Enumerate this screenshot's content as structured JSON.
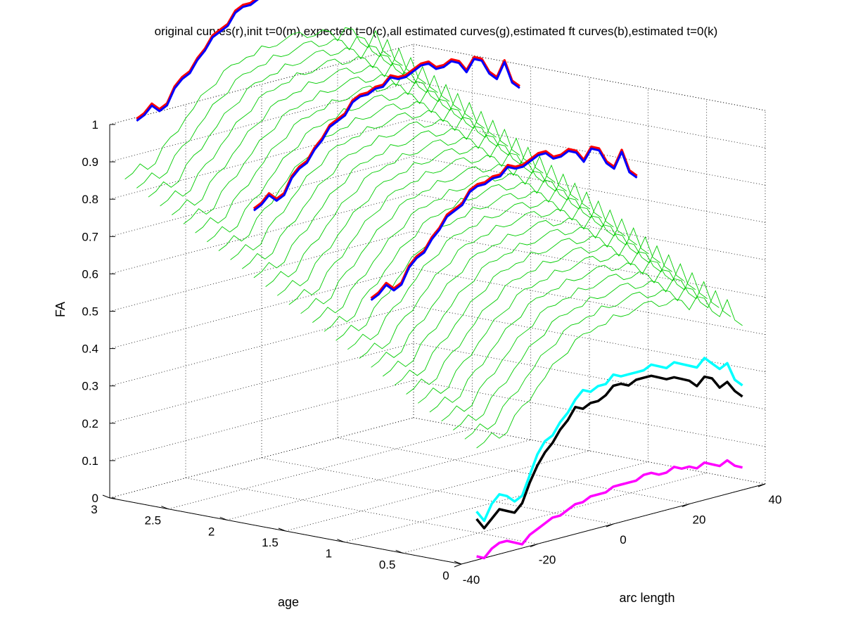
{
  "chart_data": {
    "type": "line",
    "projection": "3d",
    "title": "original curves(r),init t=0(m),expected t=0(c),all estimated curves(g),estimated ft curves(b),estimated t=0(k)",
    "xlabel": "arc length",
    "ylabel": "age",
    "zlabel": "FA",
    "xlim": [
      -40,
      40
    ],
    "ylim": [
      0,
      3
    ],
    "zlim": [
      0,
      1
    ],
    "x_ticks": [
      -40,
      -20,
      0,
      20,
      40
    ],
    "y_ticks": [
      0,
      0.5,
      1,
      1.5,
      2,
      2.5,
      3
    ],
    "z_ticks": [
      0,
      0.1,
      0.2,
      0.3,
      0.4,
      0.5,
      0.6,
      0.7,
      0.8,
      0.9,
      1
    ],
    "x_tick_labels": [
      "-40",
      "-20",
      "0",
      "20",
      "40"
    ],
    "y_tick_labels": [
      "0",
      "0.5",
      "1",
      "1.5",
      "2",
      "2.5",
      "3"
    ],
    "z_tick_labels": [
      "0",
      "0.1",
      "0.2",
      "0.3",
      "0.4",
      "0.5",
      "0.6",
      "0.7",
      "0.8",
      "0.9",
      "1"
    ],
    "grid": true,
    "box": true,
    "arc_length": [
      -36,
      -34,
      -32,
      -30,
      -28,
      -26,
      -24,
      -22,
      -20,
      -18,
      -16,
      -14,
      -12,
      -10,
      -8,
      -6,
      -4,
      -2,
      0,
      2,
      4,
      6,
      8,
      10,
      12,
      14,
      16,
      18,
      20,
      22,
      24,
      26,
      28,
      30,
      32,
      34
    ],
    "estimated_family": {
      "color": "#00cc00",
      "ages": [
        0.0,
        0.1,
        0.2,
        0.3,
        0.4,
        0.5,
        0.6,
        0.7,
        0.8,
        0.9,
        1.0,
        1.1,
        1.2,
        1.3,
        1.4,
        1.5,
        1.6,
        1.7,
        1.8,
        1.9,
        2.0,
        2.1,
        2.2,
        2.3,
        2.4,
        2.5,
        2.6,
        2.7,
        2.8,
        2.9,
        3.0
      ],
      "base": [
        0.3,
        0.31,
        0.33,
        0.31,
        0.32,
        0.36,
        0.38,
        0.39,
        0.42,
        0.44,
        0.47,
        0.48,
        0.49,
        0.52,
        0.53,
        0.53,
        0.54,
        0.54,
        0.56,
        0.55,
        0.55,
        0.56,
        0.57,
        0.57,
        0.55,
        0.55,
        0.56,
        0.55,
        0.52,
        0.55,
        0.54,
        0.5,
        0.48,
        0.52,
        0.46,
        0.44
      ],
      "age_slope": 0.181
    },
    "series": [
      {
        "name": "original curves",
        "color": "#ff0000",
        "kind": "age_curves",
        "ages": [
          0.9,
          1.9,
          2.9
        ],
        "age_shift": 0.185
      },
      {
        "name": "estimated ft curves",
        "color": "#0000ff",
        "kind": "age_curves",
        "ages": [
          0.9,
          1.9,
          2.9
        ],
        "age_shift": 0.18
      },
      {
        "name": "init t=0",
        "color": "#ff00ff",
        "age": 0,
        "values": [
          0.01,
          0.0,
          0.02,
          0.03,
          0.03,
          0.02,
          0.01,
          0.03,
          0.04,
          0.05,
          0.06,
          0.06,
          0.07,
          0.08,
          0.08,
          0.09,
          0.09,
          0.09,
          0.1,
          0.1,
          0.1,
          0.1,
          0.11,
          0.11,
          0.1,
          0.1,
          0.11,
          0.1,
          0.1,
          0.09,
          0.1,
          0.09,
          0.08,
          0.09,
          0.07,
          0.06
        ]
      },
      {
        "name": "expected t=0",
        "color": "#00ffff",
        "age": 0,
        "values": [
          0.13,
          0.1,
          0.14,
          0.16,
          0.15,
          0.13,
          0.14,
          0.19,
          0.24,
          0.27,
          0.28,
          0.31,
          0.33,
          0.36,
          0.38,
          0.37,
          0.38,
          0.38,
          0.4,
          0.39,
          0.39,
          0.39,
          0.39,
          0.4,
          0.39,
          0.38,
          0.39,
          0.38,
          0.37,
          0.36,
          0.38,
          0.36,
          0.34,
          0.35,
          0.3,
          0.28
        ]
      },
      {
        "name": "estimated t=0",
        "color": "#000000",
        "age": 0,
        "values": [
          0.11,
          0.08,
          0.1,
          0.12,
          0.11,
          0.1,
          0.12,
          0.17,
          0.21,
          0.24,
          0.26,
          0.29,
          0.31,
          0.34,
          0.33,
          0.34,
          0.34,
          0.35,
          0.37,
          0.37,
          0.36,
          0.37,
          0.37,
          0.37,
          0.36,
          0.35,
          0.35,
          0.34,
          0.33,
          0.31,
          0.33,
          0.32,
          0.29,
          0.3,
          0.27,
          0.25
        ]
      }
    ]
  }
}
